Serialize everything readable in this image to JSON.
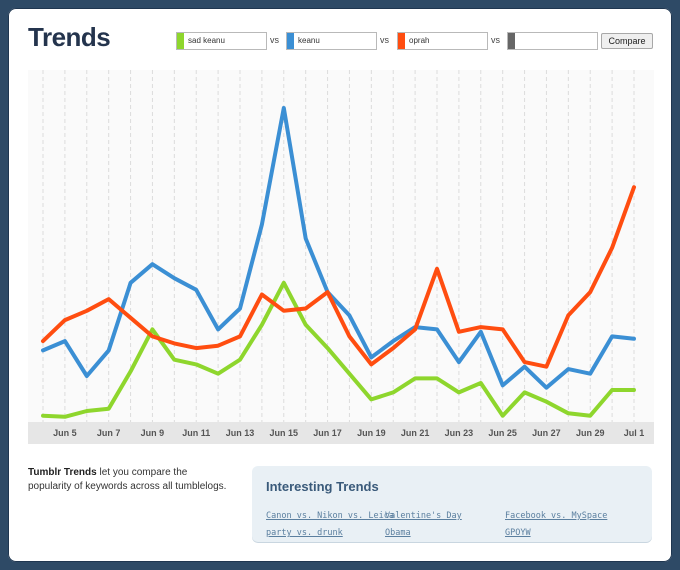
{
  "page": {
    "title": "Trends"
  },
  "keywords": [
    {
      "value": "sad keanu",
      "color": "#8ed62d"
    },
    {
      "value": "keanu",
      "color": "#3b8fd4"
    },
    {
      "value": "oprah",
      "color": "#ff4d10"
    },
    {
      "value": "",
      "color": "#666666"
    }
  ],
  "vs_label": "vs",
  "compare_label": "Compare",
  "description": {
    "brand": "Tumblr Trends",
    "text": " let you compare the popularity of keywords across all tumblelogs."
  },
  "interesting": {
    "heading": "Interesting Trends",
    "links": [
      "Canon vs. Nikon vs. Leica",
      "Valentine's Day",
      "Facebook vs. MySpace",
      "party vs. drunk",
      "Obama",
      "GPOYW"
    ]
  },
  "chart_data": {
    "type": "line",
    "categories": [
      "Jun 4",
      "Jun 5",
      "Jun 6",
      "Jun 7",
      "Jun 8",
      "Jun 9",
      "Jun 10",
      "Jun 11",
      "Jun 12",
      "Jun 13",
      "Jun 14",
      "Jun 15",
      "Jun 16",
      "Jun 17",
      "Jun 18",
      "Jun 19",
      "Jun 20",
      "Jun 21",
      "Jun 22",
      "Jun 23",
      "Jun 24",
      "Jun 25",
      "Jun 26",
      "Jun 27",
      "Jun 28",
      "Jun 29",
      "Jun 30",
      "Jul 1"
    ],
    "x_tick_labels": [
      "Jun 5",
      "Jun 7",
      "Jun 9",
      "Jun 11",
      "Jun 13",
      "Jun 15",
      "Jun 17",
      "Jun 19",
      "Jun 21",
      "Jun 23",
      "Jun 25",
      "Jun 27",
      "Jun 29",
      "Jul 1"
    ],
    "ylim": [
      0,
      100
    ],
    "grid": true,
    "series": [
      {
        "name": "sad keanu",
        "color": "#8ed62d",
        "values": [
          1,
          0.5,
          3,
          4,
          20,
          38,
          25,
          23,
          19,
          25,
          40,
          58,
          40,
          30,
          19,
          8,
          11,
          17,
          17,
          11,
          15,
          1,
          11,
          7,
          2,
          1,
          12,
          12
        ]
      },
      {
        "name": "keanu",
        "color": "#3b8fd4",
        "values": [
          29,
          33,
          18,
          29,
          58,
          66,
          60,
          55,
          38,
          47,
          83,
          133,
          77,
          54,
          44,
          26,
          33,
          39,
          38,
          24,
          37,
          14,
          22,
          13,
          21,
          19,
          35,
          34
        ]
      },
      {
        "name": "oprah",
        "color": "#ff4d10",
        "values": [
          33,
          42,
          46,
          51,
          43,
          35,
          32,
          30,
          31,
          35,
          53,
          46,
          47,
          54,
          35,
          23,
          30,
          38,
          64,
          37,
          39,
          38,
          24,
          22,
          44,
          54,
          73,
          99
        ]
      }
    ]
  }
}
